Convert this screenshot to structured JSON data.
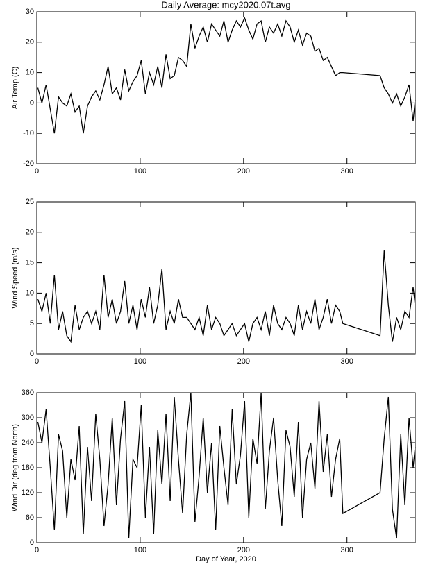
{
  "chart_data": [
    {
      "type": "line",
      "title": "Daily Average: mcy2020.07t.avg",
      "ylabel": "Air Temp (C)",
      "color": "#000000",
      "xlim": [
        0,
        366
      ],
      "xticks": [
        0,
        100,
        200,
        300
      ],
      "ylim": [
        -20,
        30
      ],
      "yticks": [
        -20,
        -10,
        0,
        10,
        20,
        30
      ],
      "x": [
        1,
        5,
        9,
        13,
        17,
        21,
        25,
        29,
        33,
        37,
        41,
        45,
        49,
        53,
        57,
        61,
        65,
        69,
        73,
        77,
        81,
        85,
        89,
        93,
        97,
        101,
        105,
        109,
        113,
        117,
        121,
        125,
        129,
        133,
        137,
        141,
        145,
        149,
        153,
        157,
        161,
        165,
        169,
        173,
        177,
        181,
        185,
        189,
        193,
        197,
        201,
        205,
        209,
        213,
        217,
        221,
        225,
        229,
        233,
        237,
        241,
        245,
        249,
        253,
        257,
        261,
        265,
        269,
        273,
        277,
        281,
        285,
        289,
        293,
        296,
        332,
        336,
        340,
        344,
        348,
        352,
        356,
        360,
        364,
        366
      ],
      "values": [
        5,
        0,
        6,
        -2,
        -10,
        2,
        0,
        -1,
        3,
        -3,
        -1,
        -10,
        -1,
        2,
        4,
        1,
        6,
        12,
        3,
        5,
        1,
        11,
        4,
        7,
        9,
        14,
        3,
        10,
        6,
        12,
        5,
        16,
        8,
        9,
        15,
        14,
        12,
        26,
        18,
        22,
        25,
        20,
        26,
        24,
        22,
        27,
        20,
        24,
        27,
        25,
        28,
        24,
        21,
        26,
        27,
        20,
        25,
        23,
        26,
        22,
        27,
        25,
        20,
        24,
        19,
        23,
        22,
        17,
        18,
        14,
        15,
        12,
        9,
        10,
        10,
        9,
        5,
        3,
        0,
        3,
        -1,
        2,
        6,
        -6,
        1
      ]
    },
    {
      "type": "line",
      "ylabel": "Wind Speed (m/s)",
      "color": "#000000",
      "xlim": [
        0,
        366
      ],
      "xticks": [
        0,
        100,
        200,
        300
      ],
      "ylim": [
        0,
        25
      ],
      "yticks": [
        0,
        5,
        10,
        15,
        20,
        25
      ],
      "x": [
        1,
        5,
        9,
        13,
        17,
        21,
        25,
        29,
        33,
        37,
        41,
        45,
        49,
        53,
        57,
        61,
        65,
        69,
        73,
        77,
        81,
        85,
        89,
        93,
        97,
        101,
        105,
        109,
        113,
        117,
        121,
        125,
        129,
        133,
        137,
        141,
        145,
        149,
        153,
        157,
        161,
        165,
        169,
        173,
        177,
        181,
        185,
        189,
        193,
        197,
        201,
        205,
        209,
        213,
        217,
        221,
        225,
        229,
        233,
        237,
        241,
        245,
        249,
        253,
        257,
        261,
        265,
        269,
        273,
        277,
        281,
        285,
        289,
        293,
        296,
        332,
        336,
        340,
        344,
        348,
        352,
        356,
        360,
        364,
        366
      ],
      "values": [
        9,
        7,
        10,
        5,
        13,
        4,
        7,
        3,
        2,
        8,
        4,
        6,
        7,
        5,
        7,
        4,
        13,
        6,
        9,
        5,
        7,
        12,
        5,
        8,
        4,
        9,
        6,
        11,
        5,
        8,
        14,
        4,
        7,
        5,
        9,
        6,
        6,
        5,
        4,
        6,
        3,
        8,
        4,
        6,
        5,
        3,
        4,
        5,
        3,
        4,
        5,
        2,
        5,
        6,
        4,
        7,
        3,
        8,
        5,
        4,
        6,
        5,
        3,
        8,
        4,
        7,
        5,
        9,
        4,
        6,
        9,
        5,
        8,
        7,
        5,
        3,
        17,
        8,
        2,
        6,
        4,
        7,
        6,
        11,
        8
      ]
    },
    {
      "type": "line",
      "ylabel": "Wind Dir (deg from North)",
      "xlabel": "Day of Year, 2020",
      "color": "#000000",
      "xlim": [
        0,
        366
      ],
      "xticks": [
        0,
        100,
        200,
        300
      ],
      "ylim": [
        0,
        360
      ],
      "yticks": [
        0,
        60,
        120,
        180,
        240,
        300,
        360
      ],
      "x": [
        1,
        5,
        9,
        13,
        17,
        21,
        25,
        29,
        33,
        37,
        41,
        45,
        49,
        53,
        57,
        61,
        65,
        69,
        73,
        77,
        81,
        85,
        89,
        93,
        97,
        101,
        105,
        109,
        113,
        117,
        121,
        125,
        129,
        133,
        137,
        141,
        145,
        149,
        153,
        157,
        161,
        165,
        169,
        173,
        177,
        181,
        185,
        189,
        193,
        197,
        201,
        205,
        209,
        213,
        217,
        221,
        225,
        229,
        233,
        237,
        241,
        245,
        249,
        253,
        257,
        261,
        265,
        269,
        273,
        277,
        281,
        285,
        289,
        293,
        296,
        332,
        336,
        340,
        344,
        348,
        352,
        356,
        360,
        364,
        366
      ],
      "values": [
        290,
        240,
        320,
        180,
        30,
        260,
        220,
        60,
        200,
        150,
        280,
        20,
        230,
        100,
        310,
        200,
        40,
        140,
        300,
        90,
        250,
        340,
        10,
        200,
        180,
        330,
        60,
        230,
        20,
        270,
        140,
        310,
        100,
        350,
        200,
        70,
        260,
        360,
        50,
        160,
        300,
        120,
        240,
        30,
        280,
        180,
        90,
        320,
        140,
        210,
        340,
        60,
        250,
        190,
        360,
        80,
        220,
        300,
        150,
        40,
        270,
        230,
        110,
        290,
        60,
        200,
        240,
        130,
        340,
        170,
        260,
        110,
        200,
        250,
        70,
        120,
        250,
        350,
        80,
        10,
        260,
        90,
        300,
        180,
        230
      ]
    }
  ]
}
